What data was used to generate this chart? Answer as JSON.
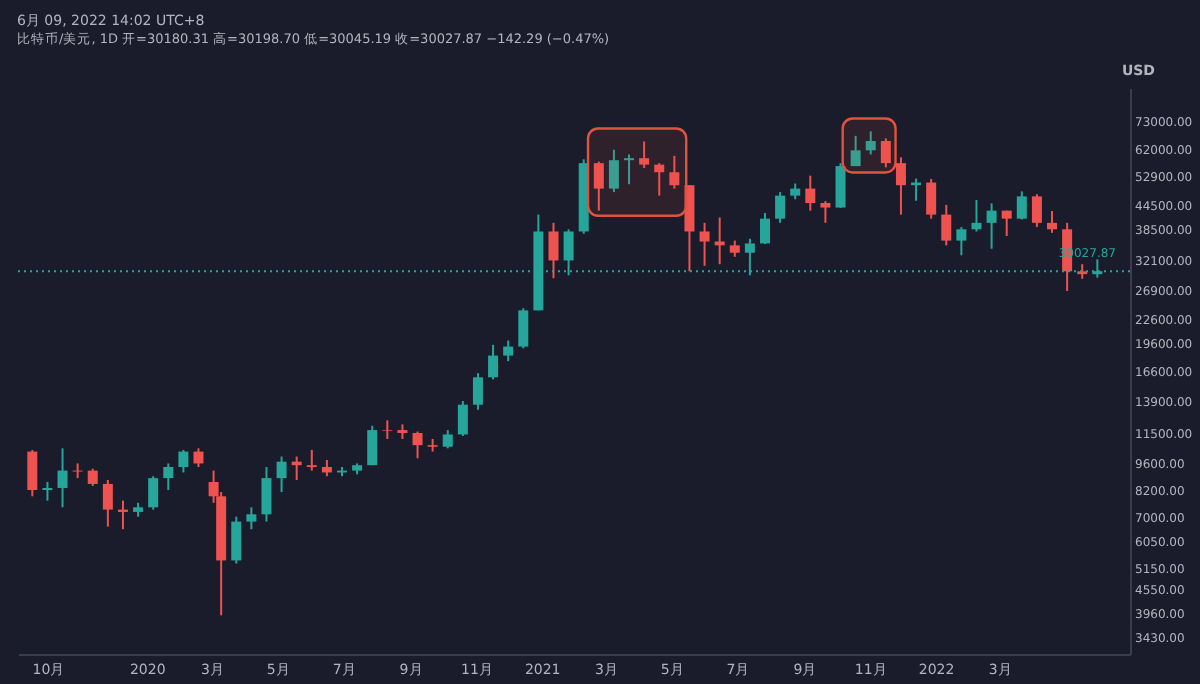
{
  "chart_data": {
    "type": "candlestick",
    "title": "6月 09, 2022 14:02 UTC+8",
    "subtitle": "比特币/美元, 1D  开=30180.31  高=30198.70  低=30045.19  收=30027.87  −142.29 (−0.47%)",
    "x": [
      "2019-09-16",
      "2019-09-30",
      "2019-10-14",
      "2019-10-28",
      "2019-11-11",
      "2019-11-25",
      "2019-12-09",
      "2019-12-23",
      "2020-01-06",
      "2020-01-20",
      "2020-02-03",
      "2020-02-17",
      "2020-03-02",
      "2020-03-09",
      "2020-03-23",
      "2020-04-06",
      "2020-04-20",
      "2020-05-04",
      "2020-05-18",
      "2020-06-01",
      "2020-06-15",
      "2020-06-29",
      "2020-07-13",
      "2020-07-27",
      "2020-08-10",
      "2020-08-24",
      "2020-09-07",
      "2020-09-21",
      "2020-10-05",
      "2020-10-19",
      "2020-11-02",
      "2020-11-16",
      "2020-11-30",
      "2020-12-14",
      "2020-12-28",
      "2021-01-11",
      "2021-01-25",
      "2021-02-08",
      "2021-02-22",
      "2021-03-08",
      "2021-03-22",
      "2021-04-05",
      "2021-04-19",
      "2021-05-03",
      "2021-05-17",
      "2021-05-31",
      "2021-06-14",
      "2021-06-28",
      "2021-07-12",
      "2021-07-26",
      "2021-08-09",
      "2021-08-23",
      "2021-09-06",
      "2021-09-20",
      "2021-10-04",
      "2021-10-18",
      "2021-11-01",
      "2021-11-15",
      "2021-11-29",
      "2021-12-13",
      "2021-12-27",
      "2022-01-10",
      "2022-01-24",
      "2022-02-07",
      "2022-02-21",
      "2022-03-07",
      "2022-03-21",
      "2022-04-04",
      "2022-04-18",
      "2022-05-02",
      "2022-05-16",
      "2022-05-30"
    ],
    "ohlc": [
      [
        10300,
        10400,
        7900,
        8200
      ],
      [
        8200,
        8600,
        7700,
        8300
      ],
      [
        8300,
        10500,
        7400,
        9200
      ],
      [
        9200,
        9600,
        8800,
        9150
      ],
      [
        9200,
        9300,
        8400,
        8500
      ],
      [
        8500,
        8700,
        6600,
        7300
      ],
      [
        7300,
        7700,
        6500,
        7200
      ],
      [
        7200,
        7600,
        7000,
        7400
      ],
      [
        7400,
        8900,
        7300,
        8800
      ],
      [
        8800,
        9600,
        8200,
        9400
      ],
      [
        9400,
        10400,
        9100,
        10300
      ],
      [
        10300,
        10500,
        9400,
        9600
      ],
      [
        8600,
        9200,
        7600,
        7900
      ],
      [
        7900,
        8100,
        3900,
        5400
      ],
      [
        5400,
        7000,
        5300,
        6800
      ],
      [
        6800,
        7400,
        6500,
        7100
      ],
      [
        7100,
        9400,
        6800,
        8800
      ],
      [
        8800,
        10000,
        8100,
        9700
      ],
      [
        9700,
        10000,
        8700,
        9500
      ],
      [
        9500,
        10400,
        9200,
        9400
      ],
      [
        9400,
        9800,
        8900,
        9100
      ],
      [
        9100,
        9400,
        8900,
        9200
      ],
      [
        9200,
        9600,
        9000,
        9500
      ],
      [
        9500,
        12000,
        9500,
        11700
      ],
      [
        11700,
        12400,
        11100,
        11650
      ],
      [
        11700,
        12100,
        11100,
        11500
      ],
      [
        11500,
        11600,
        9900,
        10700
      ],
      [
        10700,
        11100,
        10300,
        10600
      ],
      [
        10600,
        11700,
        10500,
        11400
      ],
      [
        11400,
        13900,
        11300,
        13600
      ],
      [
        13600,
        16400,
        13200,
        16000
      ],
      [
        16000,
        19400,
        15800,
        18200
      ],
      [
        18200,
        19900,
        17600,
        19200
      ],
      [
        19200,
        24100,
        19000,
        23800
      ],
      [
        23800,
        42000,
        23800,
        38000
      ],
      [
        38000,
        40000,
        28800,
        32000
      ],
      [
        32000,
        38500,
        29300,
        38000
      ],
      [
        38000,
        58300,
        37500,
        57000
      ],
      [
        57000,
        57500,
        43000,
        49000
      ],
      [
        49000,
        61700,
        48000,
        58000
      ],
      [
        58000,
        60000,
        50300,
        58700
      ],
      [
        58700,
        64800,
        55400,
        56500
      ],
      [
        56500,
        57000,
        47000,
        54000
      ],
      [
        54000,
        59500,
        49000,
        50000
      ],
      [
        50000,
        50000,
        30000,
        38000
      ],
      [
        38000,
        40000,
        31000,
        35800
      ],
      [
        35800,
        41300,
        31300,
        35000
      ],
      [
        35000,
        36000,
        32700,
        33500
      ],
      [
        33500,
        36400,
        29300,
        35400
      ],
      [
        35400,
        42400,
        35300,
        41000
      ],
      [
        41000,
        48000,
        40000,
        47000
      ],
      [
        47000,
        50500,
        46000,
        49000
      ],
      [
        49000,
        52900,
        43000,
        45000
      ],
      [
        45000,
        45500,
        40000,
        43800
      ],
      [
        43800,
        57000,
        43700,
        56000
      ],
      [
        56000,
        67000,
        56000,
        61500
      ],
      [
        61500,
        68800,
        60000,
        65000
      ],
      [
        65000,
        66000,
        55600,
        57000
      ],
      [
        57000,
        59000,
        42000,
        50000
      ],
      [
        50000,
        52000,
        45600,
        50800
      ],
      [
        50800,
        51900,
        41000,
        42000
      ],
      [
        42000,
        44500,
        35000,
        36000
      ],
      [
        36000,
        39000,
        33000,
        38500
      ],
      [
        38500,
        45800,
        38000,
        40000
      ],
      [
        40000,
        44900,
        34300,
        43000
      ],
      [
        43000,
        43000,
        37000,
        41000
      ],
      [
        41000,
        48200,
        40800,
        46800
      ],
      [
        46800,
        47400,
        39000,
        40000
      ],
      [
        40000,
        42900,
        37700,
        38500
      ],
      [
        38500,
        40000,
        26700,
        30000
      ],
      [
        30000,
        31300,
        28700,
        29500
      ],
      [
        29500,
        32200,
        28900,
        30027.87
      ]
    ],
    "colors": [
      "#ef5350",
      "#26a69a",
      "#26a69a",
      "#ef5350",
      "#ef5350",
      "#ef5350",
      "#ef5350",
      "#26a69a",
      "#26a69a",
      "#26a69a",
      "#26a69a",
      "#ef5350",
      "#ef5350",
      "#ef5350",
      "#26a69a",
      "#26a69a",
      "#26a69a",
      "#26a69a",
      "#ef5350",
      "#ef5350",
      "#ef5350",
      "#26a69a",
      "#26a69a",
      "#26a69a",
      "#ef5350",
      "#ef5350",
      "#ef5350",
      "#ef5350",
      "#26a69a",
      "#26a69a",
      "#26a69a",
      "#26a69a",
      "#26a69a",
      "#26a69a",
      "#26a69a",
      "#ef5350",
      "#26a69a",
      "#26a69a",
      "#ef5350",
      "#26a69a",
      "#26a69a",
      "#ef5350",
      "#ef5350",
      "#ef5350",
      "#ef5350",
      "#ef5350",
      "#ef5350",
      "#ef5350",
      "#26a69a",
      "#26a69a",
      "#26a69a",
      "#26a69a",
      "#ef5350",
      "#ef5350",
      "#26a69a",
      "#26a69a",
      "#26a69a",
      "#ef5350",
      "#ef5350",
      "#26a69a",
      "#ef5350",
      "#ef5350",
      "#26a69a",
      "#26a69a",
      "#26a69a",
      "#ef5350",
      "#26a69a",
      "#ef5350",
      "#ef5350",
      "#ef5350",
      "#ef5350",
      "#26a69a"
    ],
    "log": true,
    "ylim": [
      3100,
      89000
    ],
    "yticks": [
      {
        "value": 3430,
        "label": "3430.00"
      },
      {
        "value": 3960,
        "label": "3960.00"
      },
      {
        "value": 4550,
        "label": "4550.00"
      },
      {
        "value": 5150,
        "label": "5150.00"
      },
      {
        "value": 6050,
        "label": "6050.00"
      },
      {
        "value": 7000,
        "label": "7000.00"
      },
      {
        "value": 8200,
        "label": "8200.00"
      },
      {
        "value": 9600,
        "label": "9600.00"
      },
      {
        "value": 11500,
        "label": "11500.00"
      },
      {
        "value": 13900,
        "label": "13900.00"
      },
      {
        "value": 16600,
        "label": "16600.00"
      },
      {
        "value": 19600,
        "label": "19600.00"
      },
      {
        "value": 22600,
        "label": "22600.00"
      },
      {
        "value": 26900,
        "label": "26900.00"
      },
      {
        "value": 32100,
        "label": "32100.00"
      },
      {
        "value": 38500,
        "label": "38500.00"
      },
      {
        "value": 44500,
        "label": "44500.00"
      },
      {
        "value": 52900,
        "label": "52900.00"
      },
      {
        "value": 62000,
        "label": "62000.00"
      },
      {
        "value": 73000,
        "label": "73000.00"
      }
    ],
    "ylabel": "USD",
    "xlim": [
      "2019-09-12",
      "2022-06-20"
    ],
    "xticks": [
      {
        "value": "2019-10-01",
        "label": "10月"
      },
      {
        "value": "2020-01-01",
        "label": "2020"
      },
      {
        "value": "2020-03-01",
        "label": "3月"
      },
      {
        "value": "2020-05-01",
        "label": "5月"
      },
      {
        "value": "2020-07-01",
        "label": "7月"
      },
      {
        "value": "2020-09-01",
        "label": "9月"
      },
      {
        "value": "2020-11-01",
        "label": "11月"
      },
      {
        "value": "2021-01-01",
        "label": "2021"
      },
      {
        "value": "2021-03-01",
        "label": "3月"
      },
      {
        "value": "2021-05-01",
        "label": "5月"
      },
      {
        "value": "2021-07-01",
        "label": "7月"
      },
      {
        "value": "2021-09-01",
        "label": "9月"
      },
      {
        "value": "2021-11-01",
        "label": "11月"
      },
      {
        "value": "2022-01-01",
        "label": "2022"
      },
      {
        "value": "2022-03-01",
        "label": "3月"
      }
    ],
    "ref_lines": [
      {
        "axis": "y",
        "value": 30027.87,
        "label": "30027.87",
        "color": "#26a69a",
        "line_style": "dotted"
      }
    ],
    "bands": [
      {
        "axis": "x",
        "from": "2021-02-12",
        "to": "2021-05-14",
        "color": "#e0533f"
      },
      {
        "axis": "x",
        "from": "2021-10-06",
        "to": "2021-11-24",
        "color": "#e0533f"
      }
    ],
    "grid": false
  }
}
